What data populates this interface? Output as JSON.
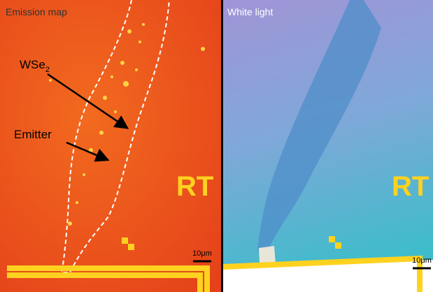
{
  "panels": [
    {
      "label": "Emission map",
      "annotations": [
        {
          "text": "WSe",
          "subscript": "2"
        },
        {
          "text": "Emitter"
        }
      ],
      "marker_text": "RT",
      "scale_bar": "10μm"
    },
    {
      "label": "White light",
      "marker_text": "RT",
      "scale_bar": "10μm"
    }
  ]
}
